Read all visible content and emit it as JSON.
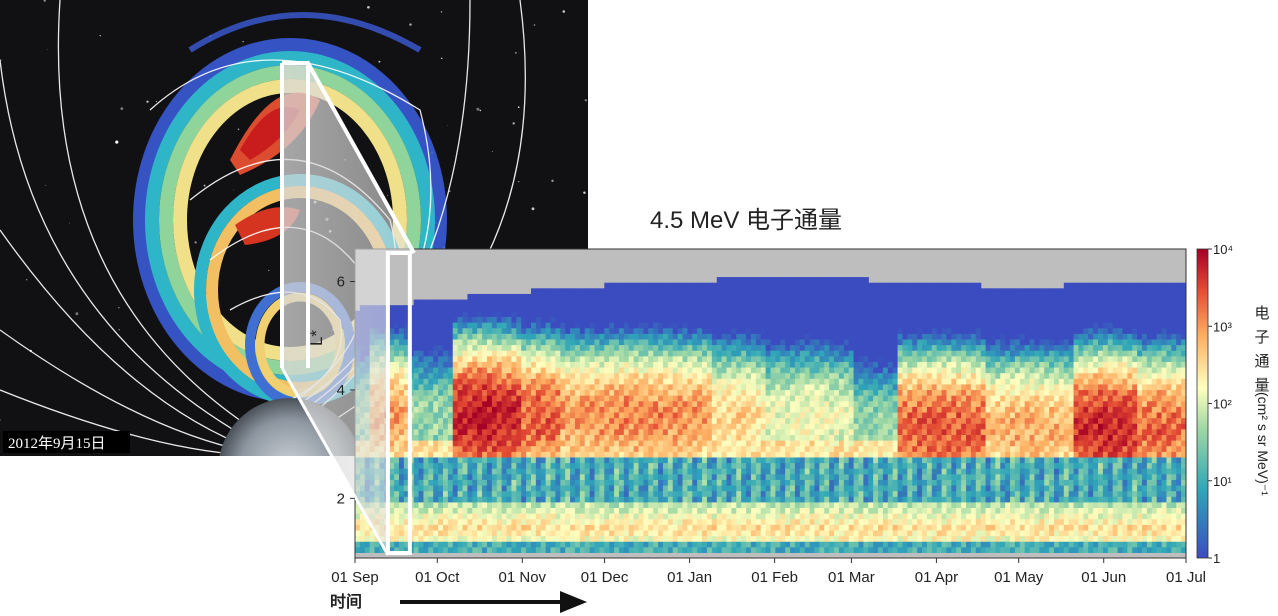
{
  "inset": {
    "date_label": "2012年9月15日"
  },
  "chart_data": {
    "type": "heatmap",
    "title": "4.5 MeV 电子通量",
    "xlabel": "时间",
    "ylabel": "L*",
    "x_tick_labels": [
      "01 Sep",
      "01 Oct",
      "01 Nov",
      "01 Dec",
      "01 Jan",
      "01 Feb",
      "01 Mar",
      "01 Apr",
      "01 May",
      "01 Jun",
      "01 Jul"
    ],
    "x_tick_days": [
      0,
      30,
      61,
      91,
      122,
      153,
      181,
      212,
      242,
      273,
      303
    ],
    "y_ticks": [
      2,
      4,
      6
    ],
    "ylim": [
      0.9,
      6.6
    ],
    "colorbar": {
      "label": "电子通量 (cm² s sr MeV)⁻¹",
      "label_chars": [
        "电",
        "子",
        "通",
        "量"
      ],
      "label_units": "(cm² s sr MeV)⁻¹",
      "scale": "log",
      "range": [
        1,
        10000
      ],
      "tick_labels": [
        "10⁴",
        "10³",
        "10²",
        "10¹",
        "1"
      ],
      "tick_values": [
        10000,
        1000,
        100,
        10,
        1
      ]
    },
    "highlight_window_days": [
      12,
      20
    ],
    "colors": {
      "high": "#a50026",
      "mid": "#ffffbf",
      "low": "#313695",
      "data_gap": "#bebebe"
    }
  }
}
